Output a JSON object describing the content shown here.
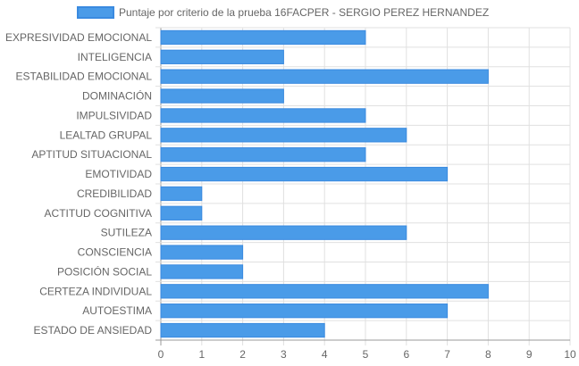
{
  "chart_data": {
    "type": "bar",
    "orientation": "horizontal",
    "legend_position": "top",
    "grid": true,
    "categories": [
      "EXPRESIVIDAD EMOCIONAL",
      "INTELIGENCIA",
      "ESTABILIDAD EMOCIONAL",
      "DOMINACIÓN",
      "IMPULSIVIDAD",
      "LEALTAD GRUPAL",
      "APTITUD SITUACIONAL",
      "EMOTIVIDAD",
      "CREDIBILIDAD",
      "ACTITUD COGNITIVA",
      "SUTILEZA",
      "CONSCIENCIA",
      "POSICIÓN SOCIAL",
      "CERTEZA INDIVIDUAL",
      "AUTOESTIMA",
      "ESTADO DE ANSIEDAD"
    ],
    "series": [
      {
        "name": "Puntaje por criterio de la prueba 16FACPER - SERGIO PEREZ HERNANDEZ",
        "values": [
          5,
          3,
          8,
          3,
          5,
          6,
          5,
          7,
          1,
          1,
          6,
          2,
          2,
          8,
          7,
          4
        ],
        "color": "#4a9be8",
        "border_color": "#3a8ae0"
      }
    ],
    "xlim": [
      0,
      10
    ],
    "xticks": [
      "0",
      "1",
      "2",
      "3",
      "4",
      "5",
      "6",
      "7",
      "8",
      "9",
      "10"
    ],
    "grid_color": "#e0e0e0",
    "axis_color": "#999999"
  }
}
